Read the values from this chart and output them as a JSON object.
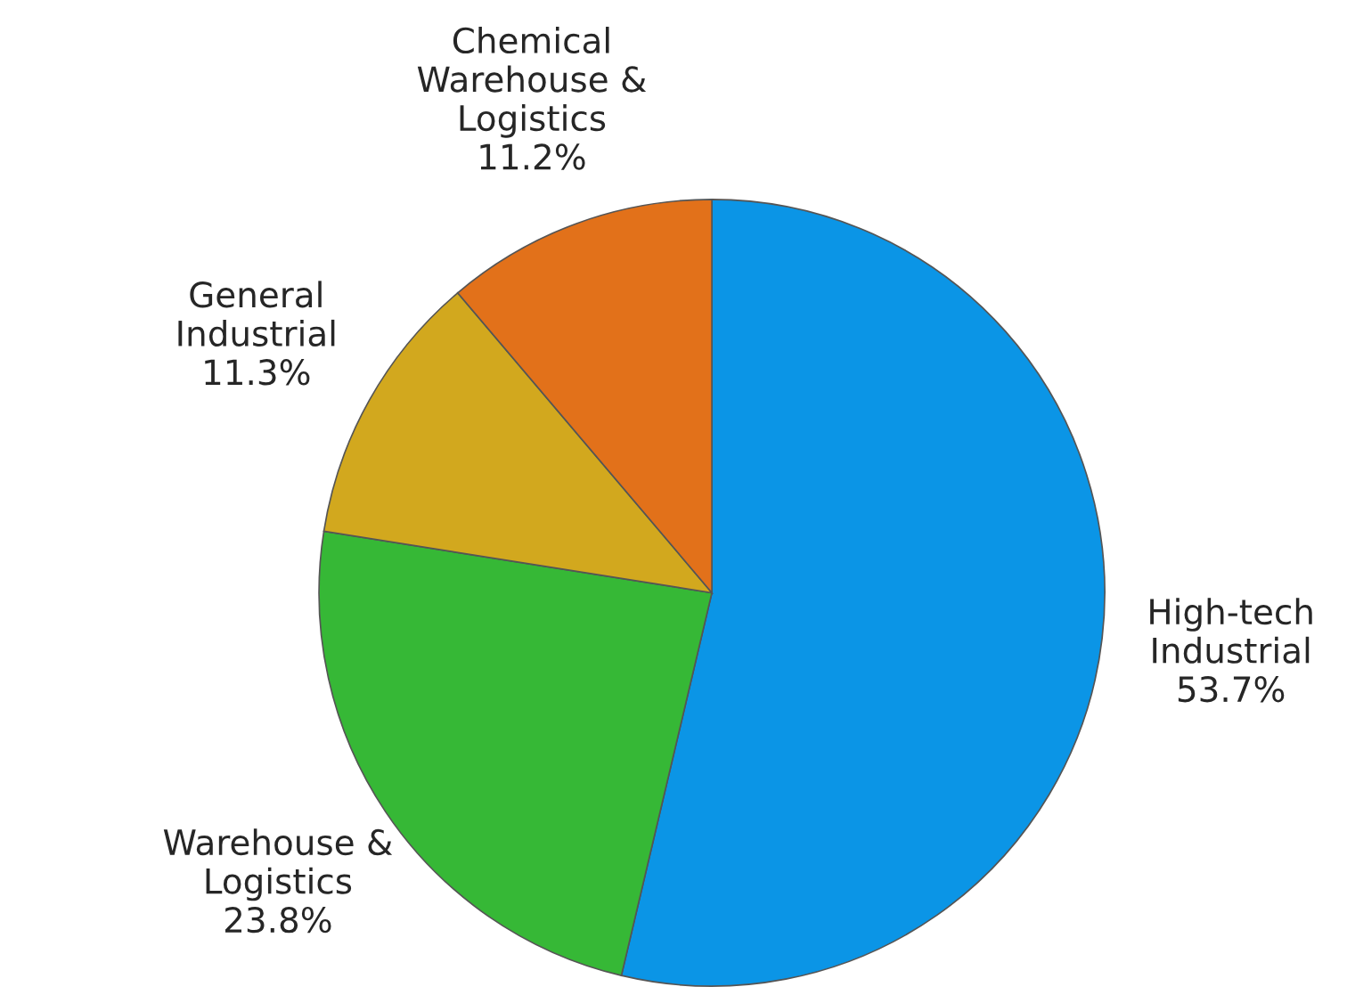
{
  "chart_data": {
    "type": "pie",
    "categories": [
      "High-tech\nIndustrial",
      "Warehouse &\nLogistics",
      "General\nIndustrial",
      "Chemical\nWarehouse &\nLogistics"
    ],
    "values": [
      53.7,
      23.8,
      11.3,
      11.2
    ],
    "value_labels": [
      "53.7%",
      "23.8%",
      "11.3%",
      "11.2%"
    ],
    "colors": [
      "#0b95e6",
      "#36b836",
      "#d2a81e",
      "#e2711a"
    ]
  }
}
